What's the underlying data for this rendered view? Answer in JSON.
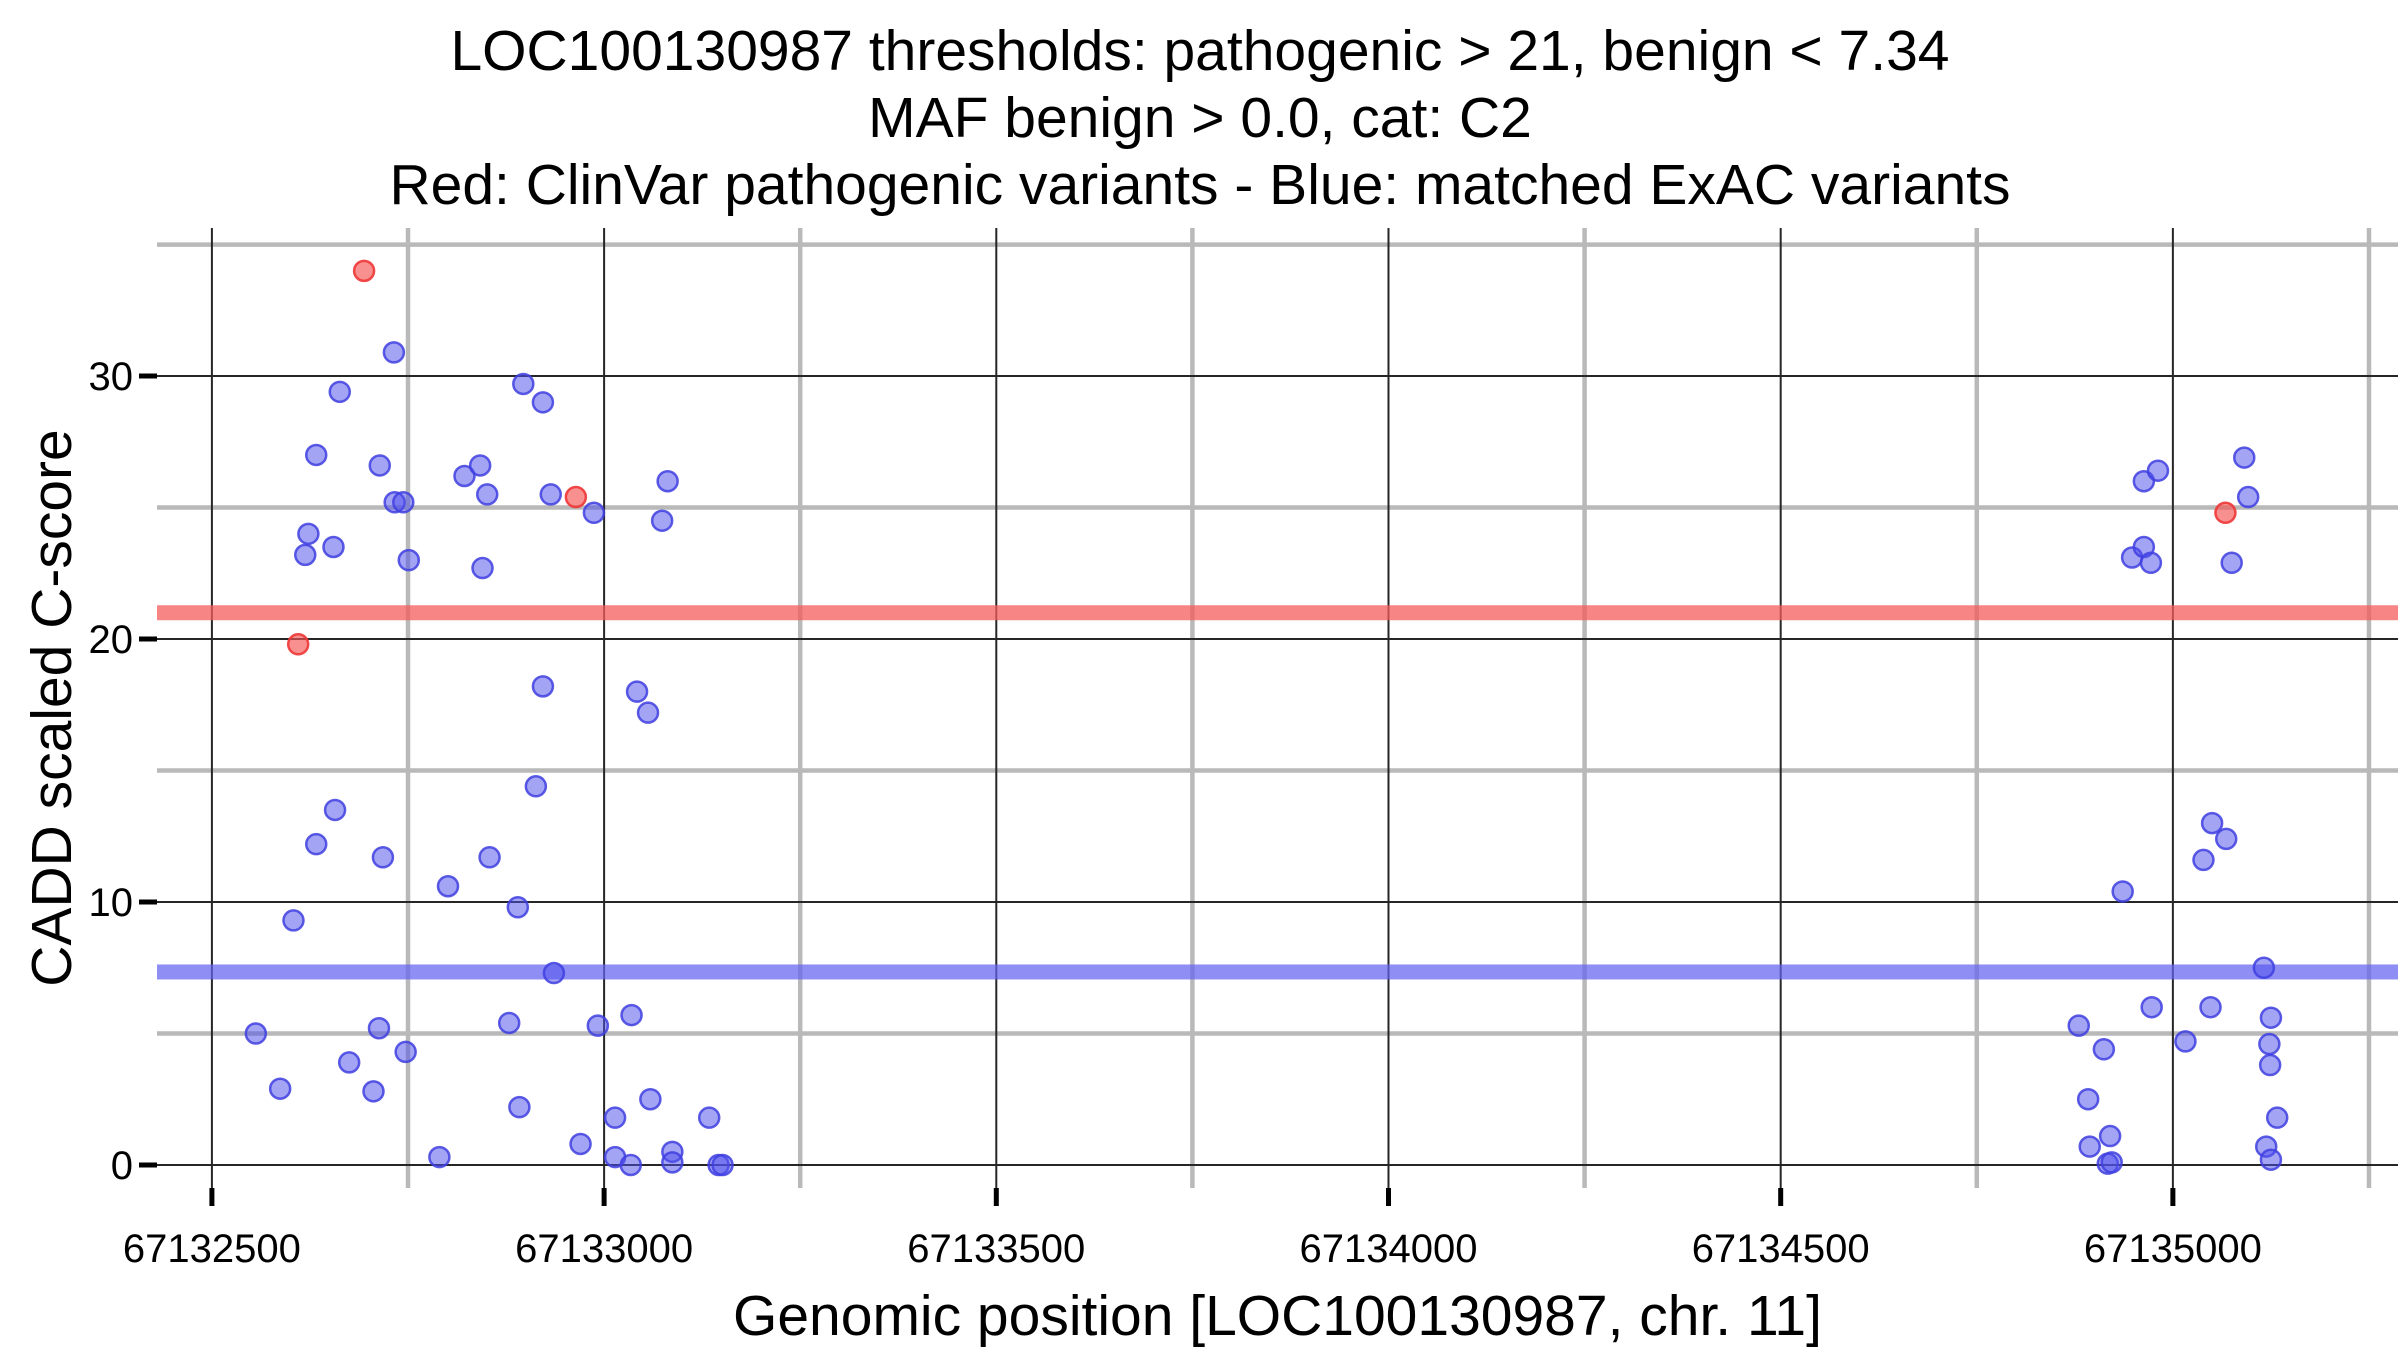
{
  "title": {
    "line1": "LOC100130987 thresholds: pathogenic > 21, benign < 7.34",
    "line2": "MAF benign > 0.0, cat: C2",
    "line3": "Red: ClinVar pathogenic variants - Blue: matched ExAC variants"
  },
  "axes": {
    "x_label": "Genomic position [LOC100130987, chr. 11]",
    "y_label": "CADD scaled C-score"
  },
  "colors": {
    "background": "#ffffff",
    "major_grid": "#262626",
    "minor_grid": "#b9b9b9",
    "tick": "#000000",
    "text": "#000000",
    "pathogenic_threshold_line": "rgba(246,92,92,0.75)",
    "benign_threshold_line": "rgba(98,98,240,0.72)",
    "red_point_fill": "rgba(244,84,84,0.65)",
    "red_point_stroke": "rgba(238,55,55,0.9)",
    "blue_point_fill": "rgba(80,80,235,0.52)",
    "blue_point_stroke": "rgba(64,64,224,0.85)"
  },
  "chart_data": {
    "type": "scatter",
    "title": "LOC100130987 thresholds: pathogenic > 21, benign < 7.34 | MAF benign > 0.0, cat: C2 | Red: ClinVar pathogenic variants - Blue: matched ExAC variants",
    "xlabel": "Genomic position [LOC100130987, chr. 11]",
    "ylabel": "CADD scaled C-score",
    "grid": true,
    "legend_position": "none",
    "x_axis": {
      "range": [
        67132430,
        67135287
      ],
      "major_ticks": [
        67132500,
        67133000,
        67133500,
        67134000,
        67134500,
        67135000
      ],
      "major_tick_labels": [
        "67132500",
        "67133000",
        "67133500",
        "67134000",
        "67134500",
        "67135000"
      ],
      "minor_ticks": [
        67132750,
        67133250,
        67133750,
        67134250,
        67134750,
        67135250
      ]
    },
    "y_axis": {
      "range": [
        -0.875,
        35.63
      ],
      "major_ticks": [
        0,
        10,
        20,
        30
      ],
      "major_tick_labels": [
        "0",
        "10",
        "20",
        "30"
      ],
      "minor_ticks": [
        5,
        15,
        25,
        35
      ]
    },
    "thresholds": [
      {
        "name": "pathogenic-threshold",
        "value": 21,
        "label": "pathogenic > 21"
      },
      {
        "name": "benign-threshold",
        "value": 7.34,
        "label": "benign < 7.34"
      }
    ],
    "series": [
      {
        "name": "matched ExAC variants",
        "color_key": "blue",
        "points": [
          [
            67132556,
            5.0
          ],
          [
            67132587,
            2.9
          ],
          [
            67132604,
            9.3
          ],
          [
            67132619,
            23.2
          ],
          [
            67132623,
            24.0
          ],
          [
            67132633,
            27.0
          ],
          [
            67132633,
            12.2
          ],
          [
            67132655,
            23.5
          ],
          [
            67132657,
            13.5
          ],
          [
            67132663,
            29.4
          ],
          [
            67132675,
            3.9
          ],
          [
            67132706,
            2.8
          ],
          [
            67132713,
            5.2
          ],
          [
            67132714,
            26.6
          ],
          [
            67132718,
            11.7
          ],
          [
            67132732,
            30.9
          ],
          [
            67132733,
            25.2
          ],
          [
            67132744,
            25.2
          ],
          [
            67132747,
            4.3
          ],
          [
            67132751,
            23.0
          ],
          [
            67132790,
            0.3
          ],
          [
            67132801,
            10.6
          ],
          [
            67132822,
            26.2
          ],
          [
            67132842,
            26.6
          ],
          [
            67132845,
            22.7
          ],
          [
            67132851,
            25.5
          ],
          [
            67132854,
            11.7
          ],
          [
            67132879,
            5.4
          ],
          [
            67132890,
            9.8
          ],
          [
            67132892,
            2.2
          ],
          [
            67132897,
            29.7
          ],
          [
            67132913,
            14.4
          ],
          [
            67132922,
            29.0
          ],
          [
            67132922,
            18.2
          ],
          [
            67132932,
            25.5
          ],
          [
            67132936,
            7.3
          ],
          [
            67132970,
            0.8
          ],
          [
            67132987,
            24.8
          ],
          [
            67132992,
            5.3
          ],
          [
            67133014,
            1.8
          ],
          [
            67133014,
            0.3
          ],
          [
            67133034,
            0.0
          ],
          [
            67133035,
            5.7
          ],
          [
            67133042,
            18.0
          ],
          [
            67133056,
            17.2
          ],
          [
            67133059,
            2.5
          ],
          [
            67133074,
            24.5
          ],
          [
            67133081,
            26.0
          ],
          [
            67133087,
            0.5
          ],
          [
            67133087,
            0.1
          ],
          [
            67133134,
            1.8
          ],
          [
            67133146,
            0.0
          ],
          [
            67133151,
            0.0
          ],
          [
            67134880,
            5.3
          ],
          [
            67134892,
            2.5
          ],
          [
            67134894,
            0.7
          ],
          [
            67134912,
            4.4
          ],
          [
            67134917,
            0.05
          ],
          [
            67134922,
            0.1
          ],
          [
            67134920,
            1.1
          ],
          [
            67134936,
            10.4
          ],
          [
            67134948,
            23.1
          ],
          [
            67134963,
            26.0
          ],
          [
            67134963,
            23.5
          ],
          [
            67134972,
            22.9
          ],
          [
            67134973,
            6.0
          ],
          [
            67134981,
            26.4
          ],
          [
            67135016,
            4.7
          ],
          [
            67135039,
            11.6
          ],
          [
            67135048,
            6.0
          ],
          [
            67135050,
            13.0
          ],
          [
            67135068,
            12.4
          ],
          [
            67135075,
            22.9
          ],
          [
            67135091,
            26.9
          ],
          [
            67135096,
            25.4
          ],
          [
            67135116,
            7.5
          ],
          [
            67135119,
            0.7
          ],
          [
            67135123,
            4.6
          ],
          [
            67135124,
            3.8
          ],
          [
            67135125,
            5.6
          ],
          [
            67135125,
            0.2
          ],
          [
            67135133,
            1.8
          ]
        ]
      },
      {
        "name": "ClinVar pathogenic variants",
        "color_key": "red",
        "points": [
          [
            67132610,
            19.8
          ],
          [
            67132694,
            34.0
          ],
          [
            67132964,
            25.4
          ],
          [
            67135067,
            24.8
          ]
        ]
      }
    ]
  }
}
